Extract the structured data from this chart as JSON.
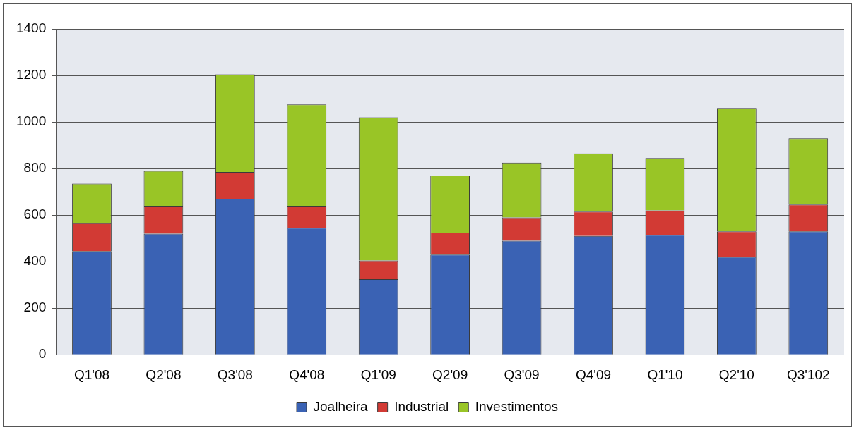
{
  "chart_data": {
    "type": "bar",
    "stacked": true,
    "categories": [
      "Q1'08",
      "Q2'08",
      "Q3'08",
      "Q4'08",
      "Q1'09",
      "Q2'09",
      "Q3'09",
      "Q4'09",
      "Q1'10",
      "Q2'10",
      "Q3'102"
    ],
    "series": [
      {
        "name": "Joalheira",
        "color": "#3a62b4",
        "values": [
          445,
          520,
          670,
          545,
          325,
          430,
          490,
          510,
          515,
          420,
          530
        ]
      },
      {
        "name": "Industrial",
        "color": "#d23a34",
        "values": [
          120,
          120,
          115,
          95,
          80,
          95,
          100,
          105,
          105,
          110,
          115
        ]
      },
      {
        "name": "Investimentos",
        "color": "#99c526",
        "values": [
          170,
          150,
          420,
          435,
          615,
          245,
          235,
          250,
          225,
          530,
          285
        ]
      }
    ],
    "ylim": [
      0,
      1400
    ],
    "yticks": [
      0,
      200,
      400,
      600,
      800,
      1000,
      1200,
      1400
    ],
    "grid": "y",
    "legend": "bottom"
  }
}
